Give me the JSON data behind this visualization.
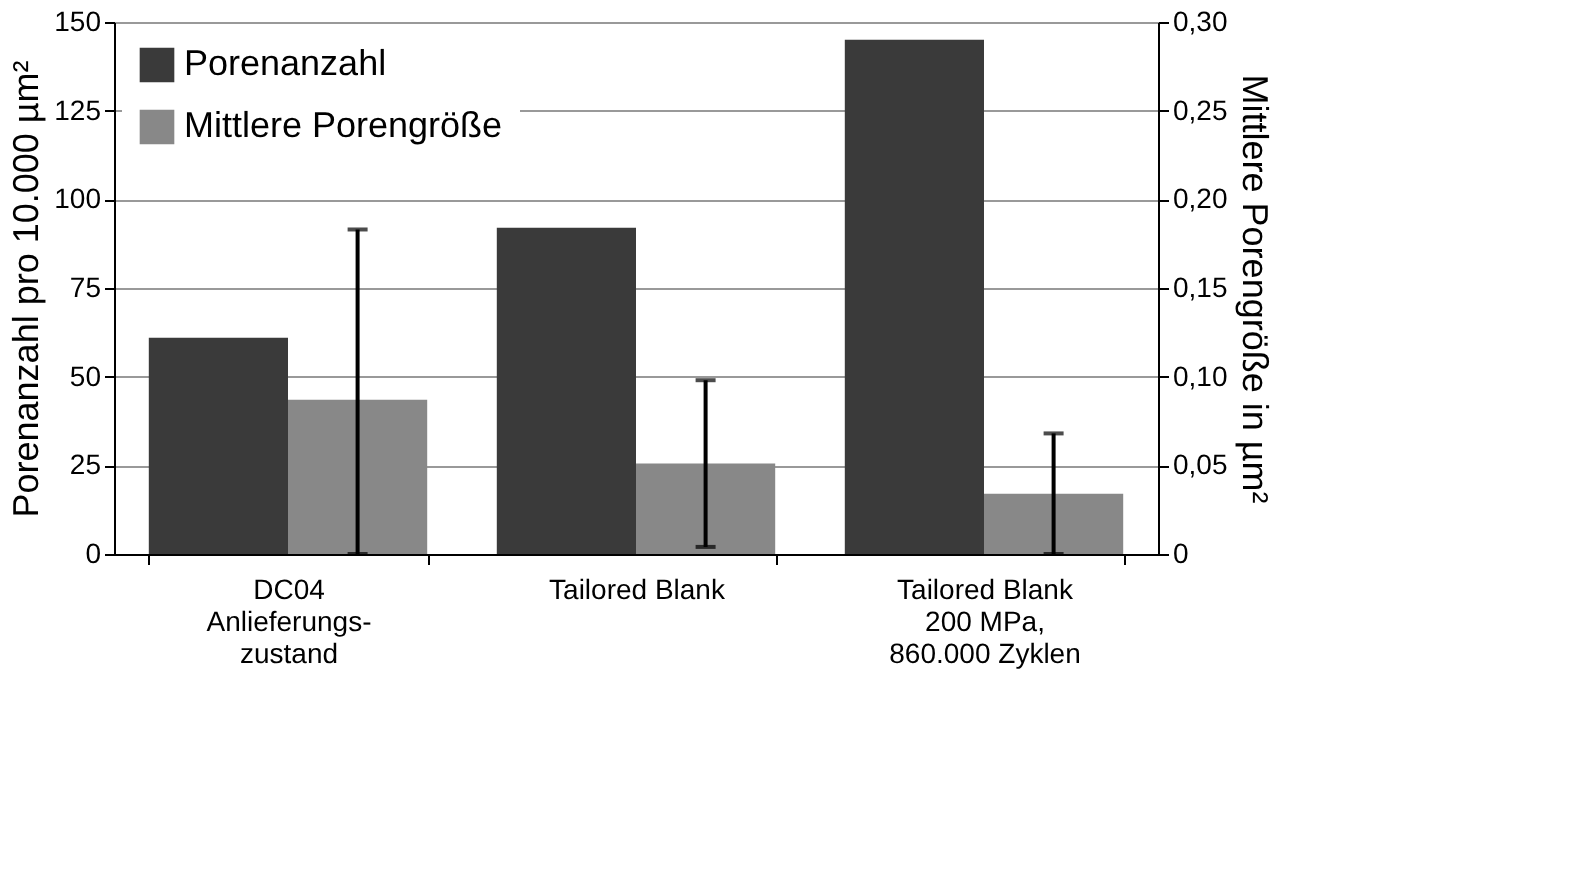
{
  "chart_data": {
    "type": "bar",
    "categories": [
      "DC04\nAnlieferungs-\nzustand",
      "Tailored Blank",
      "Tailored Blank\n200 MPa,\n860.000 Zyklen"
    ],
    "ylabel": "Porenanzahl pro 10.000 µm²",
    "y2label": "Mittlere Porengröße in µm²",
    "ylim": [
      0,
      150
    ],
    "yticks": [
      0,
      25,
      50,
      75,
      100,
      125,
      150
    ],
    "y2lim": [
      0,
      0.3
    ],
    "y2ticks": [
      {
        "value": 0,
        "label": "0"
      },
      {
        "value": 0.05,
        "label": "0,05"
      },
      {
        "value": 0.1,
        "label": "0,10"
      },
      {
        "value": 0.15,
        "label": "0,15"
      },
      {
        "value": 0.2,
        "label": "0,20"
      },
      {
        "value": 0.25,
        "label": "0,25"
      },
      {
        "value": 0.3,
        "label": "0,30"
      }
    ],
    "series": [
      {
        "name": "Porenanzahl",
        "color": "#3a3a3a",
        "values": [
          61,
          92,
          145
        ]
      },
      {
        "name": "Mittlere Porengröße",
        "color": "#888888",
        "axis": "y2",
        "values": [
          0.087,
          0.051,
          0.034
        ],
        "errors": [
          [
            0,
            0.183
          ],
          [
            0.004,
            0.098
          ],
          [
            0,
            0.068
          ]
        ]
      }
    ],
    "grid": "y",
    "legend": "top left"
  }
}
